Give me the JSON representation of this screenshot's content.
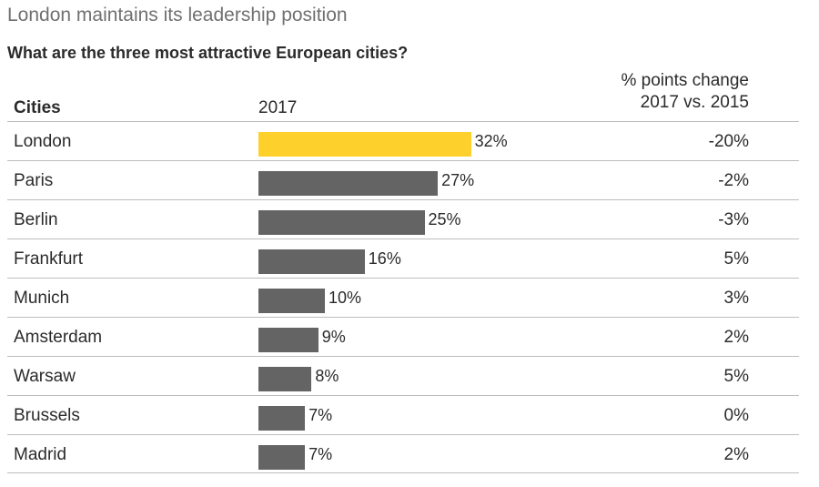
{
  "chart_data": {
    "type": "bar",
    "title": "London maintains its leadership position",
    "subtitle": "What are the three most attractive European cities?",
    "columns": {
      "city": "Cities",
      "year": "2017",
      "change_line1": "% points change",
      "change_line2": "2017 vs. 2015"
    },
    "categories": [
      "London",
      "Paris",
      "Berlin",
      "Frankfurt",
      "Munich",
      "Amsterdam",
      "Warsaw",
      "Brussels",
      "Madrid"
    ],
    "values": [
      32,
      27,
      25,
      16,
      10,
      9,
      8,
      7,
      7
    ],
    "value_labels": [
      "32%",
      "27%",
      "25%",
      "16%",
      "10%",
      "9%",
      "8%",
      "7%",
      "7%"
    ],
    "change_labels": [
      "-20%",
      "-2%",
      "-3%",
      "5%",
      "3%",
      "2%",
      "5%",
      "0%",
      "2%"
    ],
    "highlight_index": 0,
    "colors": {
      "highlight": "#fdd02b",
      "bar": "#646464"
    }
  }
}
